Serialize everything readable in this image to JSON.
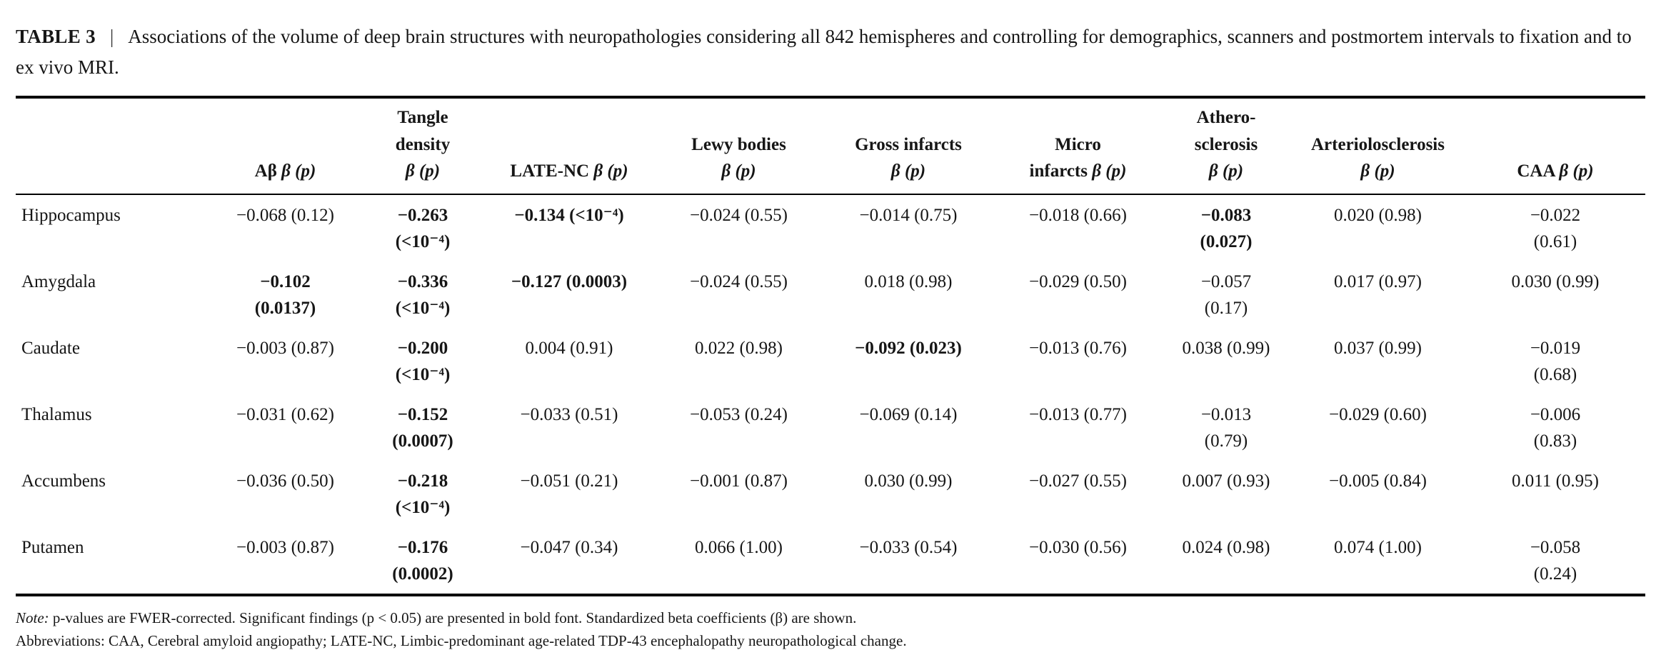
{
  "caption": {
    "label": "TABLE 3",
    "separator": "|",
    "text": "Associations of the volume of deep brain structures with neuropathologies considering all 842 hemispheres and controlling for demographics, scanners and postmortem intervals to fixation and to ex vivo MRI."
  },
  "table": {
    "headers": [
      {
        "label": "",
        "beta": ""
      },
      {
        "label": "Aβ",
        "beta": "β (p)"
      },
      {
        "label": "Tangle\ndensity",
        "beta": "β (p)"
      },
      {
        "label": "LATE-NC",
        "beta": "β (p)"
      },
      {
        "label": "Lewy bodies",
        "beta": "β (p)"
      },
      {
        "label": "Gross infarcts",
        "beta": "β (p)"
      },
      {
        "label": "Micro\ninfarcts",
        "beta": "β (p)"
      },
      {
        "label": "Athero-\nsclerosis",
        "beta": "β (p)"
      },
      {
        "label": "Arteriolosclerosis",
        "beta": "β (p)"
      },
      {
        "label": "CAA",
        "beta": "β (p)"
      }
    ],
    "rows": [
      {
        "name": "Hippocampus",
        "cells": [
          {
            "t": "−0.068 (0.12)",
            "b": false
          },
          {
            "t": "−0.263\n(<10⁻⁴)",
            "b": true
          },
          {
            "t": "−0.134 (<10⁻⁴)",
            "b": true
          },
          {
            "t": "−0.024 (0.55)",
            "b": false
          },
          {
            "t": "−0.014 (0.75)",
            "b": false
          },
          {
            "t": "−0.018 (0.66)",
            "b": false
          },
          {
            "t": "−0.083\n(0.027)",
            "b": true
          },
          {
            "t": "0.020 (0.98)",
            "b": false
          },
          {
            "t": "−0.022\n(0.61)",
            "b": false
          }
        ]
      },
      {
        "name": "Amygdala",
        "cells": [
          {
            "t": "−0.102\n(0.0137)",
            "b": true
          },
          {
            "t": "−0.336\n(<10⁻⁴)",
            "b": true
          },
          {
            "t": "−0.127 (0.0003)",
            "b": true
          },
          {
            "t": "−0.024 (0.55)",
            "b": false
          },
          {
            "t": "0.018 (0.98)",
            "b": false
          },
          {
            "t": "−0.029 (0.50)",
            "b": false
          },
          {
            "t": "−0.057\n(0.17)",
            "b": false
          },
          {
            "t": "0.017 (0.97)",
            "b": false
          },
          {
            "t": "0.030 (0.99)",
            "b": false
          }
        ]
      },
      {
        "name": "Caudate",
        "cells": [
          {
            "t": "−0.003 (0.87)",
            "b": false
          },
          {
            "t": "−0.200\n(<10⁻⁴)",
            "b": true
          },
          {
            "t": "0.004 (0.91)",
            "b": false
          },
          {
            "t": "0.022 (0.98)",
            "b": false
          },
          {
            "t": "−0.092 (0.023)",
            "b": true
          },
          {
            "t": "−0.013 (0.76)",
            "b": false
          },
          {
            "t": "0.038 (0.99)",
            "b": false
          },
          {
            "t": "0.037 (0.99)",
            "b": false
          },
          {
            "t": "−0.019\n(0.68)",
            "b": false
          }
        ]
      },
      {
        "name": "Thalamus",
        "cells": [
          {
            "t": "−0.031 (0.62)",
            "b": false
          },
          {
            "t": "−0.152\n(0.0007)",
            "b": true
          },
          {
            "t": "−0.033 (0.51)",
            "b": false
          },
          {
            "t": "−0.053 (0.24)",
            "b": false
          },
          {
            "t": "−0.069 (0.14)",
            "b": false
          },
          {
            "t": "−0.013 (0.77)",
            "b": false
          },
          {
            "t": "−0.013\n(0.79)",
            "b": false
          },
          {
            "t": "−0.029 (0.60)",
            "b": false
          },
          {
            "t": "−0.006\n(0.83)",
            "b": false
          }
        ]
      },
      {
        "name": "Accumbens",
        "cells": [
          {
            "t": "−0.036 (0.50)",
            "b": false
          },
          {
            "t": "−0.218\n(<10⁻⁴)",
            "b": true
          },
          {
            "t": "−0.051 (0.21)",
            "b": false
          },
          {
            "t": "−0.001 (0.87)",
            "b": false
          },
          {
            "t": "0.030 (0.99)",
            "b": false
          },
          {
            "t": "−0.027 (0.55)",
            "b": false
          },
          {
            "t": "0.007 (0.93)",
            "b": false
          },
          {
            "t": "−0.005 (0.84)",
            "b": false
          },
          {
            "t": "0.011 (0.95)",
            "b": false
          }
        ]
      },
      {
        "name": "Putamen",
        "cells": [
          {
            "t": "−0.003 (0.87)",
            "b": false
          },
          {
            "t": "−0.176\n(0.0002)",
            "b": true
          },
          {
            "t": "−0.047 (0.34)",
            "b": false
          },
          {
            "t": "0.066 (1.00)",
            "b": false
          },
          {
            "t": "−0.033 (0.54)",
            "b": false
          },
          {
            "t": "−0.030 (0.56)",
            "b": false
          },
          {
            "t": "0.024 (0.98)",
            "b": false
          },
          {
            "t": "0.074 (1.00)",
            "b": false
          },
          {
            "t": "−0.058\n(0.24)",
            "b": false
          }
        ]
      }
    ]
  },
  "notes": {
    "note_label": "Note:",
    "note_text": "p-values are FWER-corrected. Significant findings (p < 0.05) are presented in bold font. Standardized beta coefficients (β) are shown.",
    "abbreviations": "Abbreviations: CAA, Cerebral amyloid angiopathy; LATE-NC, Limbic-predominant age-related TDP-43 encephalopathy neuropathological change."
  }
}
